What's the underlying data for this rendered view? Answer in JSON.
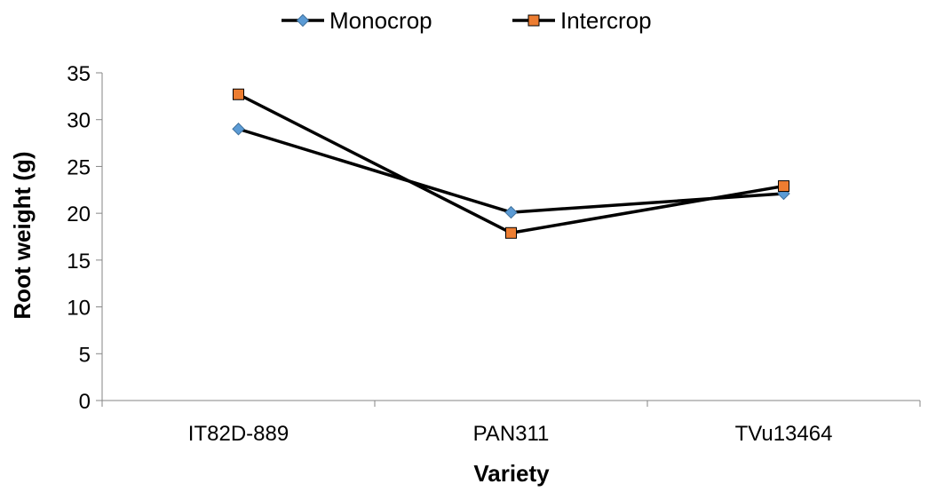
{
  "chart_data": {
    "type": "line",
    "title": "",
    "xlabel": "Variety",
    "ylabel": "Root weight (g)",
    "categories": [
      "IT82D-889",
      "PAN311",
      "TVu13464"
    ],
    "ylim": [
      0,
      35
    ],
    "yticks": [
      "0",
      "5",
      "10",
      "15",
      "20",
      "25",
      "30",
      "35"
    ],
    "grid": false,
    "legend_position": "top",
    "series": [
      {
        "name": "Monocrop",
        "values": [
          29.0,
          20.1,
          22.1
        ],
        "marker": "diamond",
        "color": "#5b9bd5"
      },
      {
        "name": "Intercrop",
        "values": [
          32.7,
          17.9,
          22.9
        ],
        "marker": "square",
        "color": "#ed7d31"
      }
    ],
    "line_color": "#000000"
  }
}
